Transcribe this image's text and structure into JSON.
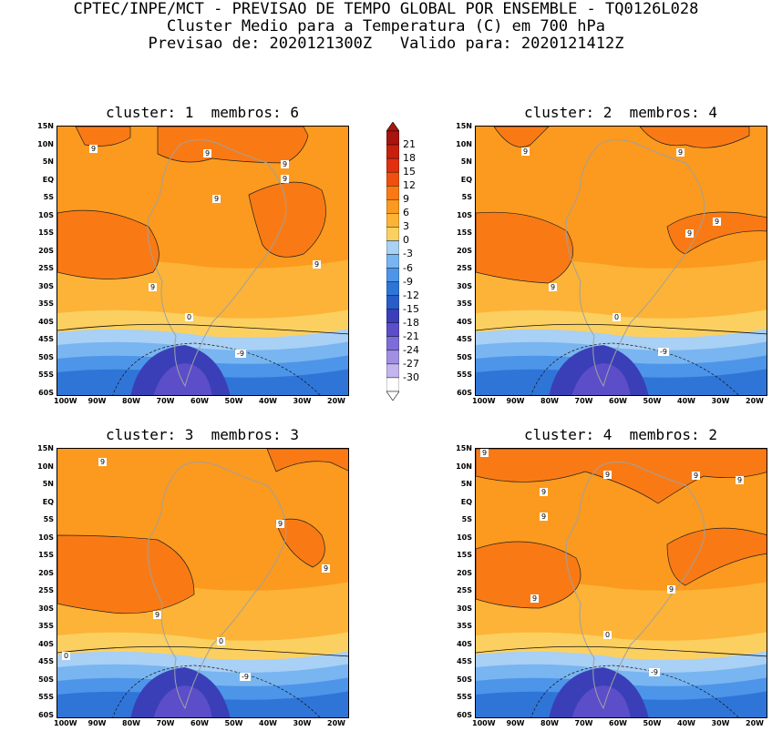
{
  "title": {
    "line1": "CPTEC/INPE/MCT - PREVISAO DE TEMPO GLOBAL POR ENSEMBLE - TQ0126L028",
    "line2": "Cluster Medio para a Temperatura (C) em 700 hPa",
    "line3": "Previsao de: 2020121300Z   Valido para: 2020121412Z"
  },
  "panels": [
    {
      "title": "cluster: 1  membros: 6",
      "contour_labels": [
        "9",
        "9",
        "9",
        "9",
        "9",
        "9",
        "9",
        "0",
        "-9"
      ]
    },
    {
      "title": "cluster: 2  membros: 4",
      "contour_labels": [
        "9",
        "9",
        "9",
        "9",
        "9",
        "0",
        "-9"
      ]
    },
    {
      "title": "cluster: 3  membros: 3",
      "contour_labels": [
        "9",
        "9",
        "9",
        "9",
        "0",
        "0",
        "-9"
      ]
    },
    {
      "title": "cluster: 4  membros: 2",
      "contour_labels": [
        "9",
        "9",
        "9",
        "9",
        "9",
        "9",
        "9",
        "9",
        "0",
        "-9"
      ]
    }
  ],
  "axes": {
    "y_ticks": [
      "15N",
      "10N",
      "5N",
      "EQ",
      "5S",
      "10S",
      "15S",
      "20S",
      "25S",
      "30S",
      "35S",
      "40S",
      "45S",
      "50S",
      "55S",
      "60S"
    ],
    "x_ticks": [
      "100W",
      "90W",
      "80W",
      "70W",
      "60W",
      "50W",
      "40W",
      "30W",
      "20W"
    ]
  },
  "colorbar": {
    "labels": [
      "21",
      "18",
      "15",
      "12",
      "9",
      "6",
      "3",
      "0",
      "-3",
      "-6",
      "-9",
      "-12",
      "-15",
      "-18",
      "-21",
      "-24",
      "-27",
      "-30"
    ],
    "colors": [
      "#a8140f",
      "#c8200f",
      "#e0300f",
      "#f0500f",
      "#f97a14",
      "#fb9a1e",
      "#fdb337",
      "#fcd060",
      "#a9d0f5",
      "#79b5f0",
      "#4d95e8",
      "#2f75d8",
      "#2a5cc8",
      "#3a3fb8",
      "#5b4ec8",
      "#7d6dd8",
      "#a190e2",
      "#c4b5ee",
      "#ffffff"
    ]
  }
}
